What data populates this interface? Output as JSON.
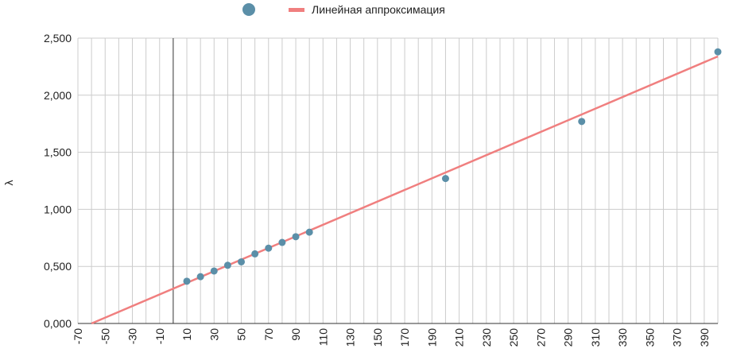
{
  "chart_data": {
    "type": "scatter",
    "title": "",
    "xlabel": "",
    "ylabel": "λ",
    "xlim": [
      -70,
      400
    ],
    "ylim": [
      0,
      2.5
    ],
    "x_tick_step": 10,
    "x_label_step": 20,
    "y_ticks": [
      0,
      0.5,
      1,
      1.5,
      2,
      2.5
    ],
    "y_tick_labels": [
      "0,000",
      "0,500",
      "1,000",
      "1,500",
      "2,000",
      "2,500"
    ],
    "grid": true,
    "legend_position": "top-center",
    "series": [
      {
        "name": "",
        "kind": "points",
        "color": "#5b8fa8",
        "x": [
          10,
          20,
          30,
          40,
          50,
          60,
          70,
          80,
          90,
          100,
          200,
          300,
          400
        ],
        "y": [
          0.37,
          0.41,
          0.46,
          0.51,
          0.54,
          0.61,
          0.66,
          0.71,
          0.76,
          0.8,
          1.27,
          1.77,
          2.38
        ]
      },
      {
        "name": "Линейная аппроксимация",
        "kind": "line",
        "color": "#f07f7f",
        "x": [
          -60,
          400
        ],
        "y": [
          0.0,
          2.34
        ]
      }
    ]
  }
}
